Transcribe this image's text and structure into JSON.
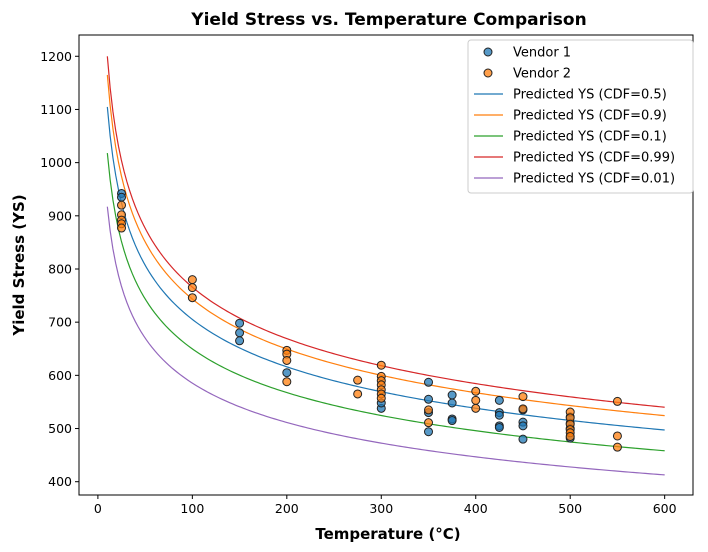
{
  "chart_data": {
    "type": "scatter",
    "title": "Yield Stress vs. Temperature Comparison",
    "xlabel": "Temperature (°C)",
    "ylabel": "Yield Stress (YS)",
    "xlim": [
      -20,
      630
    ],
    "ylim": [
      375,
      1240
    ],
    "xticks": [
      0,
      100,
      200,
      300,
      400,
      500,
      600
    ],
    "yticks": [
      400,
      500,
      600,
      700,
      800,
      900,
      1000,
      1100,
      1200
    ],
    "grid": false,
    "legend_position": "top-right",
    "scatter_series": [
      {
        "name": "Vendor 1",
        "color": "#1f77b4",
        "points": [
          [
            25,
            942
          ],
          [
            25,
            935
          ],
          [
            150,
            698
          ],
          [
            150,
            680
          ],
          [
            150,
            665
          ],
          [
            200,
            605
          ],
          [
            300,
            538
          ],
          [
            300,
            548
          ],
          [
            350,
            587
          ],
          [
            350,
            555
          ],
          [
            350,
            530
          ],
          [
            350,
            494
          ],
          [
            375,
            563
          ],
          [
            375,
            548
          ],
          [
            375,
            518
          ],
          [
            375,
            515
          ],
          [
            425,
            553
          ],
          [
            425,
            530
          ],
          [
            425,
            525
          ],
          [
            425,
            505
          ],
          [
            425,
            502
          ],
          [
            450,
            535
          ],
          [
            450,
            512
          ],
          [
            450,
            505
          ],
          [
            450,
            480
          ],
          [
            500,
            522
          ],
          [
            500,
            510
          ],
          [
            500,
            500
          ],
          [
            500,
            482
          ]
        ]
      },
      {
        "name": "Vendor 2",
        "color": "#ff7f0e",
        "points": [
          [
            25,
            920
          ],
          [
            25,
            902
          ],
          [
            25,
            892
          ],
          [
            25,
            885
          ],
          [
            25,
            877
          ],
          [
            100,
            780
          ],
          [
            100,
            765
          ],
          [
            100,
            746
          ],
          [
            200,
            647
          ],
          [
            200,
            640
          ],
          [
            200,
            628
          ],
          [
            200,
            588
          ],
          [
            275,
            591
          ],
          [
            275,
            565
          ],
          [
            300,
            619
          ],
          [
            300,
            598
          ],
          [
            300,
            590
          ],
          [
            300,
            582
          ],
          [
            300,
            573
          ],
          [
            300,
            565
          ],
          [
            300,
            557
          ],
          [
            350,
            535
          ],
          [
            350,
            511
          ],
          [
            400,
            570
          ],
          [
            400,
            553
          ],
          [
            400,
            538
          ],
          [
            450,
            560
          ],
          [
            450,
            537
          ],
          [
            500,
            531
          ],
          [
            500,
            520
          ],
          [
            500,
            508
          ],
          [
            500,
            498
          ],
          [
            500,
            492
          ],
          [
            500,
            485
          ],
          [
            550,
            551
          ],
          [
            550,
            486
          ],
          [
            550,
            465
          ]
        ]
      }
    ],
    "line_series": [
      {
        "name": "Predicted YS (CDF=0.5)",
        "color": "#1f77b4",
        "x_range": [
          10,
          600
        ],
        "model": "power",
        "a": 1731,
        "b": -0.195
      },
      {
        "name": "Predicted YS (CDF=0.9)",
        "color": "#ff7f0e",
        "x_range": [
          10,
          600
        ],
        "model": "power",
        "a": 1825,
        "b": -0.195
      },
      {
        "name": "Predicted YS (CDF=0.1)",
        "color": "#2ca02c",
        "x_range": [
          10,
          600
        ],
        "model": "power",
        "a": 1595,
        "b": -0.195
      },
      {
        "name": "Predicted YS (CDF=0.99)",
        "color": "#d62728",
        "x_range": [
          10,
          600
        ],
        "model": "power",
        "a": 1880,
        "b": -0.195
      },
      {
        "name": "Predicted YS (CDF=0.01)",
        "color": "#9467bd",
        "x_range": [
          10,
          600
        ],
        "model": "power",
        "a": 1437,
        "b": -0.195
      }
    ],
    "legend": [
      "Vendor 1",
      "Vendor 2",
      "Predicted YS (CDF=0.5)",
      "Predicted YS (CDF=0.9)",
      "Predicted YS (CDF=0.1)",
      "Predicted YS (CDF=0.99)",
      "Predicted YS (CDF=0.01)"
    ]
  }
}
